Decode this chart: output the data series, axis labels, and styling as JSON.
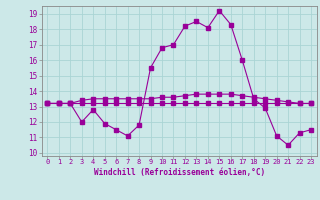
{
  "xlabel": "Windchill (Refroidissement éolien,°C)",
  "xlim": [
    -0.5,
    23.5
  ],
  "ylim": [
    9.8,
    19.5
  ],
  "yticks": [
    10,
    11,
    12,
    13,
    14,
    15,
    16,
    17,
    18,
    19
  ],
  "xticks": [
    0,
    1,
    2,
    3,
    4,
    5,
    6,
    7,
    8,
    9,
    10,
    11,
    12,
    13,
    14,
    15,
    16,
    17,
    18,
    19,
    20,
    21,
    22,
    23
  ],
  "background_color": "#cce8e8",
  "grid_color": "#aad4d4",
  "line_color": "#990099",
  "line1_y": [
    13.2,
    13.2,
    13.2,
    12.0,
    12.8,
    11.9,
    11.5,
    11.1,
    11.8,
    15.5,
    16.8,
    17.0,
    18.2,
    18.5,
    18.1,
    19.2,
    18.3,
    16.0,
    13.5,
    12.9,
    11.1,
    10.5,
    11.3,
    11.5
  ],
  "line2_y": [
    13.2,
    13.2,
    13.2,
    13.2,
    13.2,
    13.2,
    13.2,
    13.2,
    13.2,
    13.2,
    13.2,
    13.2,
    13.2,
    13.2,
    13.2,
    13.2,
    13.2,
    13.2,
    13.2,
    13.2,
    13.2,
    13.2,
    13.2,
    13.2
  ],
  "line3_y": [
    13.2,
    13.2,
    13.2,
    13.4,
    13.5,
    13.5,
    13.5,
    13.5,
    13.5,
    13.5,
    13.6,
    13.6,
    13.7,
    13.8,
    13.8,
    13.8,
    13.8,
    13.7,
    13.6,
    13.5,
    13.4,
    13.3,
    13.2,
    13.2
  ],
  "marker_size": 2.5,
  "line_width": 0.8,
  "tick_fontsize": 5.0,
  "xlabel_fontsize": 5.5
}
